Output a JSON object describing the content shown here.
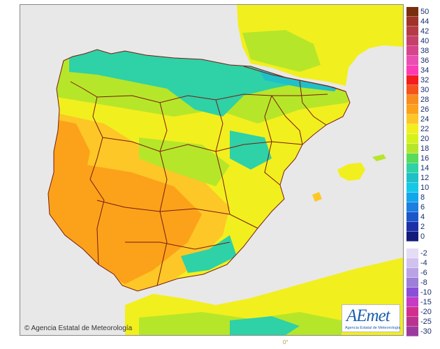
{
  "map": {
    "copyright": "© Agencia Estatal de Meteorología",
    "logo_text": "AEmet",
    "logo_subtitle": "Agencia Estatal de Meteorología",
    "bottom_mark": "0°",
    "colors": {
      "sea": "#e8e8e8",
      "land_hot": "#fba21a",
      "land_warm": "#fdc727",
      "land_mild": "#f2ef1e",
      "land_cool": "#b6e629",
      "land_cold": "#2fd1a7",
      "land_colder": "#1fc0c8",
      "border": "#7a1a12"
    }
  },
  "legend": {
    "positive": [
      {
        "label": "50",
        "color": "#7a2e0e"
      },
      {
        "label": "44",
        "color": "#a0322a"
      },
      {
        "label": "42",
        "color": "#b63a46"
      },
      {
        "label": "40",
        "color": "#c5406a"
      },
      {
        "label": "38",
        "color": "#d6448d"
      },
      {
        "label": "36",
        "color": "#ea4eb2"
      },
      {
        "label": "34",
        "color": "#fc3bb5"
      },
      {
        "label": "32",
        "color": "#f41c1c"
      },
      {
        "label": "30",
        "color": "#f4541b"
      },
      {
        "label": "28",
        "color": "#f98c1e"
      },
      {
        "label": "26",
        "color": "#fba21a"
      },
      {
        "label": "24",
        "color": "#fdc727"
      },
      {
        "label": "22",
        "color": "#f2ef1e"
      },
      {
        "label": "20",
        "color": "#d6f21d"
      },
      {
        "label": "18",
        "color": "#b6e629"
      },
      {
        "label": "16",
        "color": "#58da5a"
      },
      {
        "label": "14",
        "color": "#2fd1a7"
      },
      {
        "label": "12",
        "color": "#1fc0c8"
      },
      {
        "label": "10",
        "color": "#16c8e8"
      },
      {
        "label": "8",
        "color": "#12a6ea"
      },
      {
        "label": "6",
        "color": "#1c7ee0"
      },
      {
        "label": "4",
        "color": "#1d56c8"
      },
      {
        "label": "2",
        "color": "#1d30a8"
      },
      {
        "label": "0",
        "color": "#131b7a"
      }
    ],
    "negative": [
      {
        "label": "-2",
        "color": "#e5dcf5"
      },
      {
        "label": "-4",
        "color": "#d0c2ee"
      },
      {
        "label": "-6",
        "color": "#b9a3e6"
      },
      {
        "label": "-8",
        "color": "#9d7ed9"
      },
      {
        "label": "-10",
        "color": "#8a4fd8"
      },
      {
        "label": "-15",
        "color": "#c63ac4"
      },
      {
        "label": "-20",
        "color": "#d22e8e"
      },
      {
        "label": "-25",
        "color": "#b8338f"
      },
      {
        "label": "-30",
        "color": "#9b3a9e"
      }
    ]
  }
}
